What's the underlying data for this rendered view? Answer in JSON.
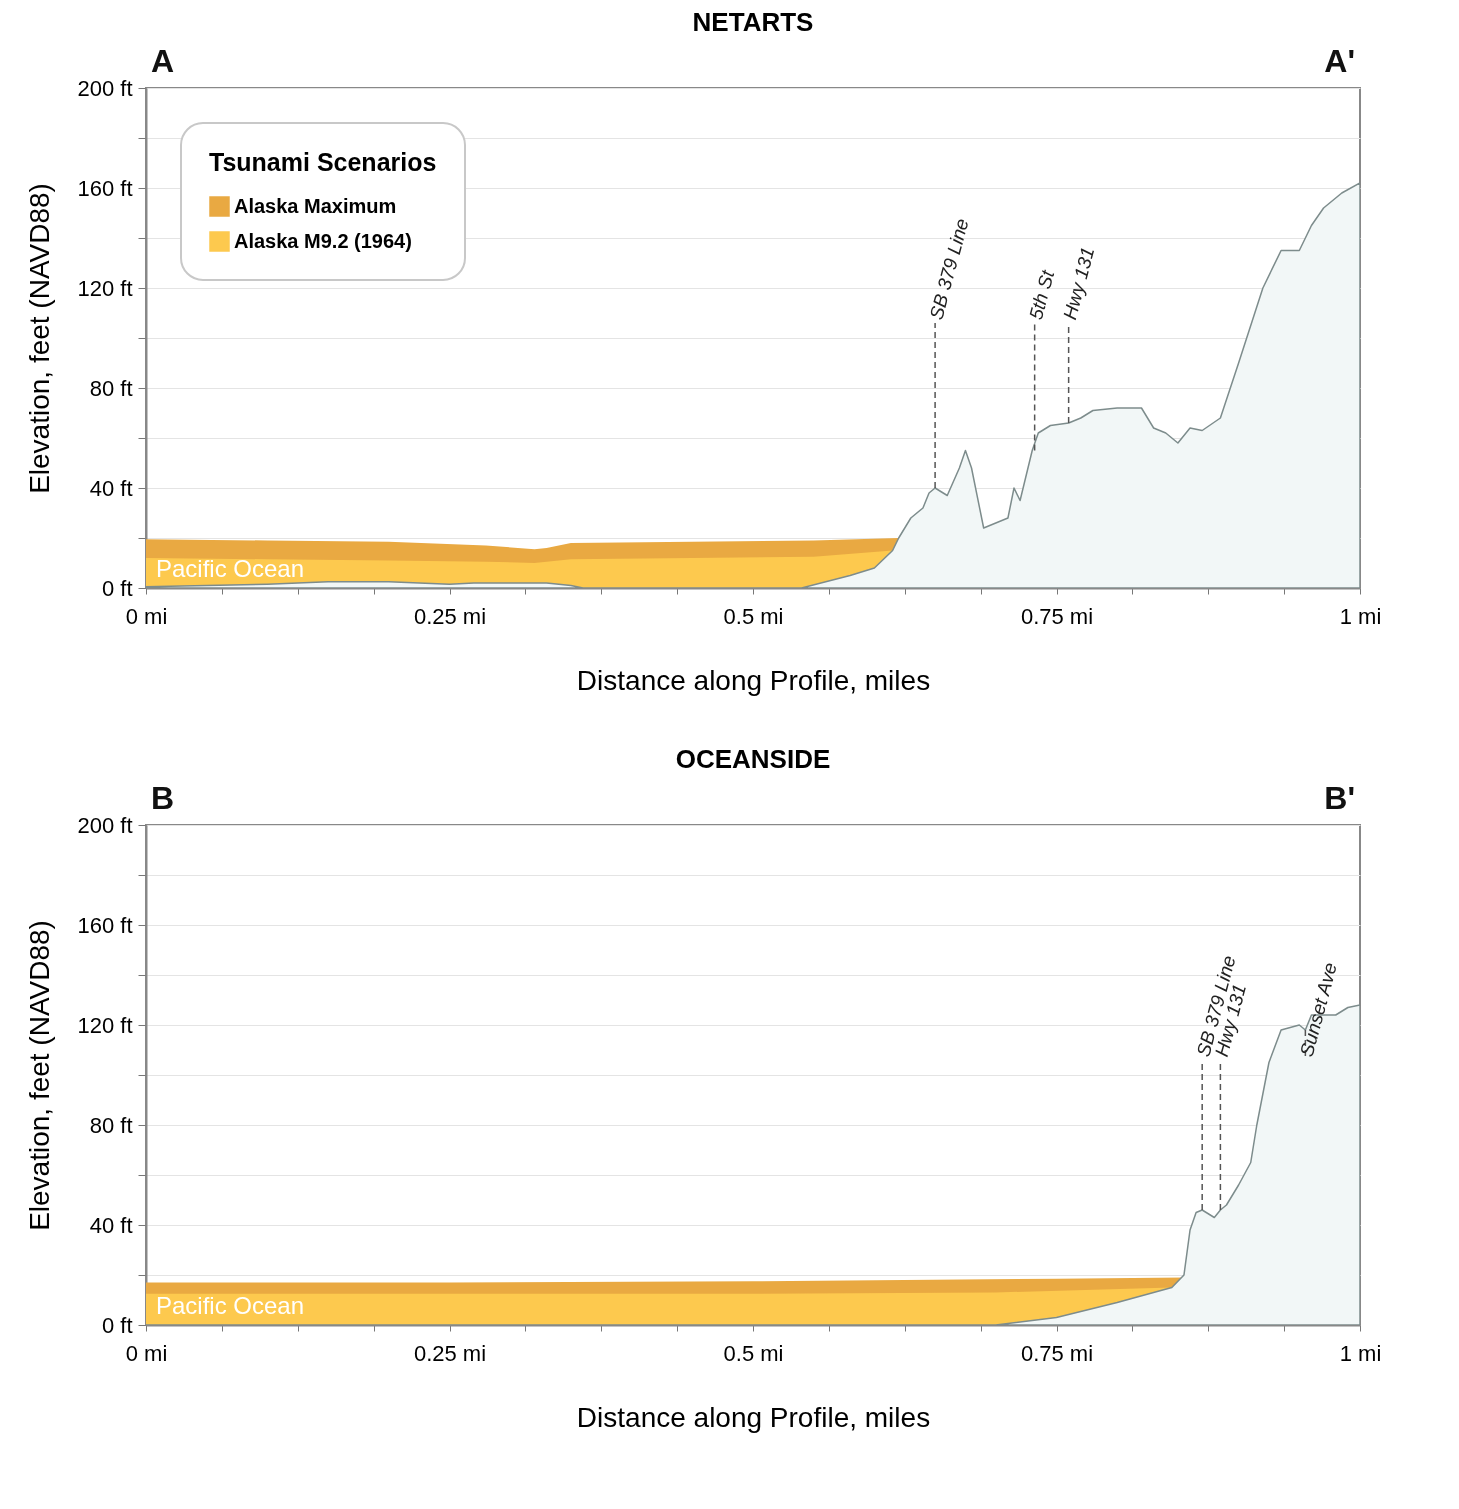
{
  "chart_data": [
    {
      "type": "area",
      "title": "NETARTS",
      "xlabel": "Distance along Profile, miles",
      "ylabel": "Elevation, feet (NAVD88)",
      "legend_title": "Tsunami Scenarios",
      "legend": "top left",
      "grid": "y",
      "annotations": [
        "A",
        "A'",
        "Pacific Ocean"
      ],
      "xlim": [
        0,
        1
      ],
      "xticks": [
        {
          "value": 0,
          "label": "0 mi"
        },
        {
          "value": 0.0625,
          "label": null
        },
        {
          "value": 0.125,
          "label": null
        },
        {
          "value": 0.1875,
          "label": null
        },
        {
          "value": 0.25,
          "label": "0.25 mi"
        },
        {
          "value": 0.3125,
          "label": null
        },
        {
          "value": 0.375,
          "label": null
        },
        {
          "value": 0.4375,
          "label": null
        },
        {
          "value": 0.5,
          "label": "0.5 mi"
        },
        {
          "value": 0.5625,
          "label": null
        },
        {
          "value": 0.625,
          "label": null
        },
        {
          "value": 0.6875,
          "label": null
        },
        {
          "value": 0.75,
          "label": "0.75 mi"
        },
        {
          "value": 0.8125,
          "label": null
        },
        {
          "value": 0.875,
          "label": null
        },
        {
          "value": 0.9375,
          "label": null
        },
        {
          "value": 1,
          "label": "1 mi"
        }
      ],
      "ylim": [
        0,
        200
      ],
      "yticks": [
        {
          "value": 0,
          "label": "0 ft"
        },
        {
          "value": 20,
          "label": null
        },
        {
          "value": 40,
          "label": "40 ft"
        },
        {
          "value": 60,
          "label": null
        },
        {
          "value": 80,
          "label": "80 ft"
        },
        {
          "value": 100,
          "label": null
        },
        {
          "value": 120,
          "label": "120 ft"
        },
        {
          "value": 140,
          "label": null
        },
        {
          "value": 160,
          "label": "160 ft"
        },
        {
          "value": 180,
          "label": null
        },
        {
          "value": 200,
          "label": "200 ft"
        }
      ],
      "series": [
        {
          "name": "Alaska Maximum",
          "color": "#e9a942",
          "x": [
            0,
            0.1,
            0.2,
            0.28,
            0.32,
            0.33,
            0.35,
            0.45,
            0.55,
            0.62
          ],
          "values": [
            19.5,
            19,
            18.5,
            17,
            15.5,
            16,
            18,
            18.5,
            19,
            20
          ]
        },
        {
          "name": "Alaska M9.2 (1964)",
          "color": "#fdc94e",
          "x": [
            0,
            0.1,
            0.2,
            0.28,
            0.32,
            0.35,
            0.45,
            0.55,
            0.615
          ],
          "values": [
            12,
            11.5,
            11,
            10.5,
            10,
            11.5,
            12,
            12.5,
            15
          ]
        },
        {
          "color": "#f2f7f7",
          "x": [
            0,
            0.05,
            0.1,
            0.15,
            0.2,
            0.25,
            0.27,
            0.33,
            0.35,
            0.36,
            0.54,
            0.58,
            0.6,
            0.615,
            0.62,
            0.63,
            0.64,
            0.645,
            0.65,
            0.66,
            0.67,
            0.675,
            0.68,
            0.69,
            0.7,
            0.71,
            0.715,
            0.72,
            0.73,
            0.735,
            0.745,
            0.76,
            0.77,
            0.78,
            0.8,
            0.82,
            0.83,
            0.84,
            0.85,
            0.86,
            0.87,
            0.885,
            0.9,
            0.92,
            0.935,
            0.95,
            0.96,
            0.97,
            0.985,
            1
          ],
          "values": [
            0.5,
            1,
            1.5,
            2.5,
            2.5,
            1.5,
            2,
            2,
            1,
            0,
            0,
            5,
            8,
            15,
            20,
            28,
            32,
            38,
            40,
            37,
            48,
            55,
            48,
            24,
            26,
            28,
            40,
            35,
            55,
            62,
            65,
            66,
            68,
            71,
            72,
            72,
            64,
            62,
            58,
            64,
            63,
            68,
            90,
            120,
            135,
            135,
            145,
            152,
            158,
            162
          ]
        }
      ],
      "ref_lines": [
        {
          "axis": "x",
          "value": 0.65,
          "label": "SB 379 Line",
          "line_style": "dashed"
        },
        {
          "axis": "x",
          "value": 0.732,
          "label": "5th St",
          "line_style": "dashed"
        },
        {
          "axis": "x",
          "value": 0.76,
          "label": "Hwy 131",
          "line_style": "dashed"
        }
      ]
    },
    {
      "type": "area",
      "title": "OCEANSIDE",
      "xlabel": "Distance along Profile, miles",
      "ylabel": "Elevation, feet (NAVD88)",
      "grid": "y",
      "annotations": [
        "B",
        "B'",
        "Pacific Ocean"
      ],
      "xlim": [
        0,
        1
      ],
      "xticks": [
        {
          "value": 0,
          "label": "0 mi"
        },
        {
          "value": 0.0625,
          "label": null
        },
        {
          "value": 0.125,
          "label": null
        },
        {
          "value": 0.1875,
          "label": null
        },
        {
          "value": 0.25,
          "label": "0.25 mi"
        },
        {
          "value": 0.3125,
          "label": null
        },
        {
          "value": 0.375,
          "label": null
        },
        {
          "value": 0.4375,
          "label": null
        },
        {
          "value": 0.5,
          "label": "0.5 mi"
        },
        {
          "value": 0.5625,
          "label": null
        },
        {
          "value": 0.625,
          "label": null
        },
        {
          "value": 0.6875,
          "label": null
        },
        {
          "value": 0.75,
          "label": "0.75 mi"
        },
        {
          "value": 0.8125,
          "label": null
        },
        {
          "value": 0.875,
          "label": null
        },
        {
          "value": 0.9375,
          "label": null
        },
        {
          "value": 1,
          "label": "1 mi"
        }
      ],
      "ylim": [
        0,
        200
      ],
      "yticks": [
        {
          "value": 0,
          "label": "0 ft"
        },
        {
          "value": 20,
          "label": null
        },
        {
          "value": 40,
          "label": "40 ft"
        },
        {
          "value": 60,
          "label": null
        },
        {
          "value": 80,
          "label": "80 ft"
        },
        {
          "value": 100,
          "label": null
        },
        {
          "value": 120,
          "label": "120 ft"
        },
        {
          "value": 140,
          "label": null
        },
        {
          "value": 160,
          "label": "160 ft"
        },
        {
          "value": 180,
          "label": null
        },
        {
          "value": 200,
          "label": "200 ft"
        }
      ],
      "series": [
        {
          "color": "#e9a942",
          "x": [
            0,
            0.25,
            0.5,
            0.75,
            0.855
          ],
          "values": [
            17,
            17,
            17.5,
            18.5,
            19
          ]
        },
        {
          "color": "#fdc94e",
          "x": [
            0,
            0.25,
            0.5,
            0.7,
            0.845
          ],
          "values": [
            12.5,
            12.5,
            12.5,
            13,
            15
          ]
        },
        {
          "color": "#f2f7f7",
          "x": [
            0,
            0.7,
            0.75,
            0.8,
            0.845,
            0.855,
            0.86,
            0.865,
            0.87,
            0.88,
            0.885,
            0.89,
            0.9,
            0.91,
            0.915,
            0.925,
            0.935,
            0.95,
            0.955,
            0.96,
            0.98,
            0.99,
            1
          ],
          "values": [
            0,
            0,
            3,
            9,
            15,
            20,
            38,
            45,
            46,
            43,
            46,
            48,
            56,
            65,
            80,
            105,
            118,
            120,
            118,
            124,
            124,
            127,
            128
          ]
        }
      ],
      "ref_lines": [
        {
          "axis": "x",
          "value": 0.87,
          "label": "SB 379 Line",
          "line_style": "dashed"
        },
        {
          "axis": "x",
          "value": 0.885,
          "label": "Hwy 131",
          "line_style": "dashed"
        },
        {
          "axis": "x",
          "value": 0.955,
          "label": "Sunset Ave",
          "line_style": "dashed"
        }
      ]
    }
  ]
}
